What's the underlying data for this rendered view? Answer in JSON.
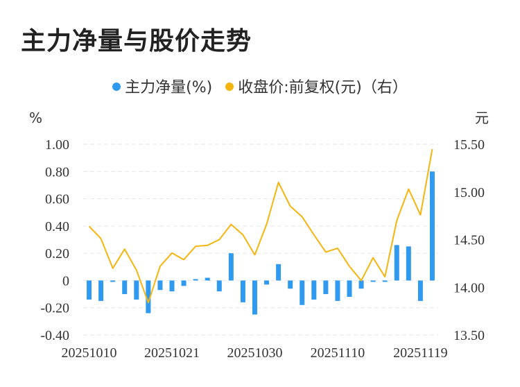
{
  "title": "主力净量与股价走势",
  "legend": [
    {
      "label": "主力净量(%)",
      "color": "#2F9AEF"
    },
    {
      "label": "收盘价:前复权(元)（右）",
      "color": "#F5B50E"
    }
  ],
  "chart_data": {
    "type": "bar+line",
    "left_unit": "%",
    "right_unit": "元",
    "x_tick_labels": [
      "20251010",
      "20251021",
      "20251030",
      "20251110",
      "20251119"
    ],
    "x_tick_indices": [
      0,
      7,
      14,
      21,
      28
    ],
    "left_axis": {
      "min": -0.4,
      "max": 1.0,
      "ticks": [
        {
          "v": 1.0,
          "label": "1.00"
        },
        {
          "v": 0.8,
          "label": "0.80"
        },
        {
          "v": 0.6,
          "label": "0.60"
        },
        {
          "v": 0.4,
          "label": "0.40"
        },
        {
          "v": 0.2,
          "label": "0.20"
        },
        {
          "v": 0,
          "label": "0"
        },
        {
          "v": -0.2,
          "label": "-0.20"
        },
        {
          "v": -0.4,
          "label": "-0.40"
        }
      ]
    },
    "right_axis": {
      "min": 13.5,
      "max": 15.5,
      "ticks": [
        {
          "v": 15.5,
          "label": "15.50"
        },
        {
          "v": 15.0,
          "label": "15.00"
        },
        {
          "v": 14.5,
          "label": "14.50"
        },
        {
          "v": 14.0,
          "label": "14.00"
        },
        {
          "v": 13.5,
          "label": "13.50"
        }
      ]
    },
    "series": [
      {
        "name": "主力净量(%)",
        "kind": "bar",
        "color": "#2F9AEF",
        "values": [
          -0.14,
          -0.15,
          -0.01,
          -0.1,
          -0.14,
          -0.24,
          -0.07,
          -0.08,
          -0.04,
          0.01,
          0.02,
          -0.08,
          0.2,
          -0.16,
          -0.25,
          -0.03,
          0.12,
          -0.06,
          -0.18,
          -0.14,
          -0.1,
          -0.15,
          -0.12,
          -0.06,
          -0.01,
          -0.01,
          0.26,
          0.25,
          -0.15,
          0.8
        ]
      },
      {
        "name": "收盘价:前复权(元)（右）",
        "kind": "line",
        "color": "#F5B50E",
        "values": [
          14.64,
          14.51,
          14.2,
          14.4,
          14.18,
          13.84,
          14.22,
          14.36,
          14.29,
          14.43,
          14.44,
          14.5,
          14.66,
          14.55,
          14.34,
          14.66,
          15.1,
          14.85,
          14.74,
          14.55,
          14.37,
          14.41,
          14.22,
          14.07,
          14.31,
          14.11,
          14.7,
          15.03,
          14.76,
          15.45
        ]
      }
    ],
    "grid": true
  }
}
